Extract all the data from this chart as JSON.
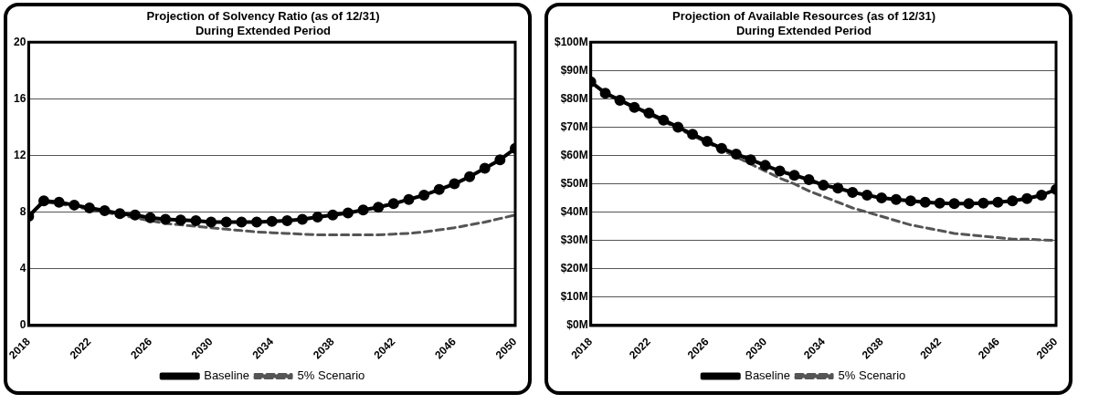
{
  "chart_data": [
    {
      "type": "line",
      "title": "Projection of Solvency Ratio (as of 12/31)",
      "subtitle": "During Extended Period",
      "x": [
        2018,
        2019,
        2020,
        2021,
        2022,
        2023,
        2024,
        2025,
        2026,
        2027,
        2028,
        2029,
        2030,
        2031,
        2032,
        2033,
        2034,
        2035,
        2036,
        2037,
        2038,
        2039,
        2040,
        2041,
        2042,
        2043,
        2044,
        2045,
        2046,
        2047,
        2048,
        2049,
        2050
      ],
      "series": [
        {
          "name": "Baseline",
          "color": "#000000",
          "marker": "circle",
          "line_style": "solid",
          "values": [
            7.7,
            8.8,
            8.7,
            8.5,
            8.3,
            8.1,
            7.9,
            7.8,
            7.6,
            7.5,
            7.45,
            7.4,
            7.3,
            7.3,
            7.3,
            7.3,
            7.35,
            7.4,
            7.5,
            7.65,
            7.8,
            7.95,
            8.15,
            8.35,
            8.6,
            8.9,
            9.2,
            9.6,
            10.0,
            10.5,
            11.1,
            11.7,
            12.5
          ]
        },
        {
          "name": "5% Scenario",
          "color": "#555555",
          "marker": "none",
          "line_style": "dashed",
          "values": [
            7.7,
            8.7,
            8.6,
            8.4,
            8.2,
            8.0,
            7.8,
            7.6,
            7.4,
            7.2,
            7.1,
            7.0,
            6.9,
            6.8,
            6.7,
            6.6,
            6.55,
            6.5,
            6.45,
            6.4,
            6.4,
            6.4,
            6.4,
            6.4,
            6.45,
            6.5,
            6.6,
            6.75,
            6.9,
            7.1,
            7.3,
            7.55,
            7.8
          ]
        }
      ],
      "xlim": [
        2018,
        2050
      ],
      "xticks": [
        2018,
        2022,
        2026,
        2030,
        2034,
        2038,
        2042,
        2046,
        2050
      ],
      "ylim": [
        0,
        20
      ],
      "yticks": [
        0,
        4,
        8,
        12,
        16,
        20
      ],
      "grid": "y",
      "legend": "bottom"
    },
    {
      "type": "line",
      "title": "Projection of Available Resources (as of 12/31)",
      "subtitle": "During Extended Period",
      "x": [
        2018,
        2019,
        2020,
        2021,
        2022,
        2023,
        2024,
        2025,
        2026,
        2027,
        2028,
        2029,
        2030,
        2031,
        2032,
        2033,
        2034,
        2035,
        2036,
        2037,
        2038,
        2039,
        2040,
        2041,
        2042,
        2043,
        2044,
        2045,
        2046,
        2047,
        2048,
        2049,
        2050
      ],
      "series": [
        {
          "name": "Baseline",
          "color": "#000000",
          "marker": "circle",
          "line_style": "solid",
          "values": [
            86,
            82,
            79.5,
            77,
            75,
            72.5,
            70,
            67.5,
            65,
            62.5,
            60.5,
            58.5,
            56.5,
            54.5,
            53,
            51.5,
            49.5,
            48.5,
            47,
            46,
            45,
            44.5,
            44,
            43.5,
            43.2,
            43,
            43,
            43.2,
            43.5,
            44,
            44.8,
            46,
            48
          ]
        },
        {
          "name": "5% Scenario",
          "color": "#555555",
          "marker": "none",
          "line_style": "dashed",
          "values": [
            86,
            82,
            79.5,
            77,
            74.5,
            72,
            69.5,
            67,
            64.5,
            62,
            59.5,
            57,
            54.5,
            52,
            50,
            47.5,
            45.5,
            43.5,
            41.5,
            40,
            38.5,
            37,
            35.5,
            34.5,
            33.5,
            32.5,
            32,
            31.5,
            31,
            30.5,
            30.5,
            30.2,
            30
          ]
        }
      ],
      "xlim": [
        2018,
        2050
      ],
      "xticks": [
        2018,
        2022,
        2026,
        2030,
        2034,
        2038,
        2042,
        2046,
        2050
      ],
      "ylim": [
        0,
        100
      ],
      "yticks": [
        {
          "value": 0,
          "label": "$0M"
        },
        {
          "value": 10,
          "label": "$10M"
        },
        {
          "value": 20,
          "label": "$20M"
        },
        {
          "value": 30,
          "label": "$30M"
        },
        {
          "value": 40,
          "label": "$40M"
        },
        {
          "value": 50,
          "label": "$50M"
        },
        {
          "value": 60,
          "label": "$60M"
        },
        {
          "value": 70,
          "label": "$70M"
        },
        {
          "value": 80,
          "label": "$80M"
        },
        {
          "value": 90,
          "label": "$90M"
        },
        {
          "value": 100,
          "label": "$100M"
        }
      ],
      "grid": "y",
      "legend": "bottom"
    }
  ]
}
